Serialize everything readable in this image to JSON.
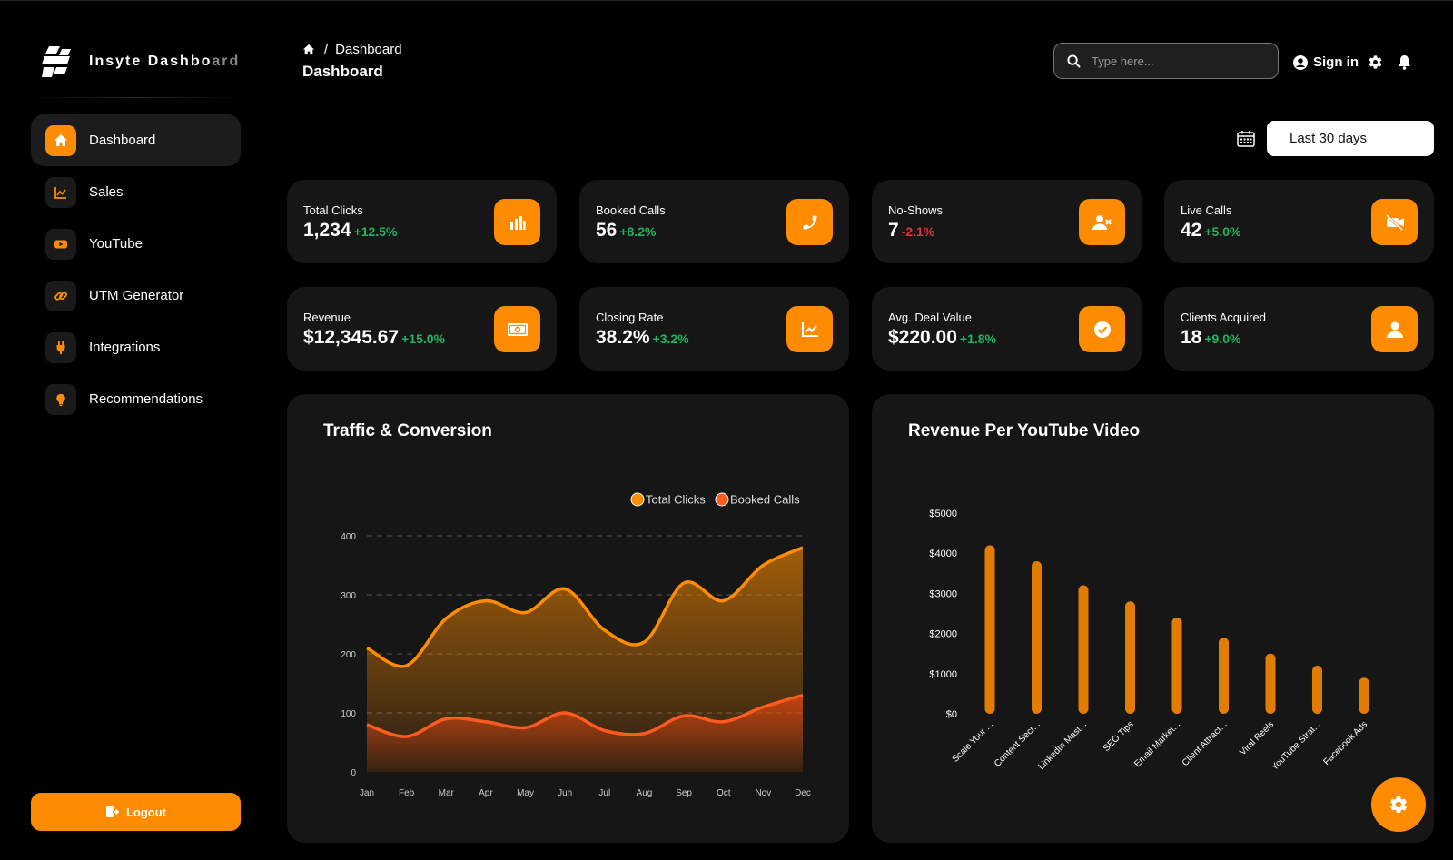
{
  "brand": {
    "name_main": "Insyte Dashbo",
    "name_fade": "ard"
  },
  "sidebar": {
    "items": [
      {
        "label": "Dashboard",
        "icon": "home-icon"
      },
      {
        "label": "Sales",
        "icon": "chart-line-icon"
      },
      {
        "label": "YouTube",
        "icon": "youtube-icon"
      },
      {
        "label": "UTM Generator",
        "icon": "link-icon"
      },
      {
        "label": "Integrations",
        "icon": "plug-icon"
      },
      {
        "label": "Recommendations",
        "icon": "lightbulb-icon"
      }
    ],
    "logout_label": "Logout"
  },
  "header": {
    "breadcrumb_sep": "/",
    "breadcrumb_current": "Dashboard",
    "title": "Dashboard",
    "search_placeholder": "Type here...",
    "signin_label": "Sign in"
  },
  "filter": {
    "range": "Last 30 days"
  },
  "stats": [
    {
      "label": "Total Clicks",
      "value": "1,234",
      "change": "+12.5%",
      "trend": "pos",
      "icon": "bar-chart-icon"
    },
    {
      "label": "Booked Calls",
      "value": "56",
      "change": "+8.2%",
      "trend": "pos",
      "icon": "phone-icon"
    },
    {
      "label": "No-Shows",
      "value": "7",
      "change": "-2.1%",
      "trend": "neg",
      "icon": "user-x-icon"
    },
    {
      "label": "Live Calls",
      "value": "42",
      "change": "+5.0%",
      "trend": "pos",
      "icon": "video-off-icon"
    },
    {
      "label": "Revenue",
      "value": "$12,345.67",
      "change": "+15.0%",
      "trend": "pos",
      "icon": "money-icon"
    },
    {
      "label": "Closing Rate",
      "value": "38.2%",
      "change": "+3.2%",
      "trend": "pos",
      "icon": "trend-icon"
    },
    {
      "label": "Avg. Deal Value",
      "value": "$220.00",
      "change": "+1.8%",
      "trend": "pos",
      "icon": "check-circle-icon"
    },
    {
      "label": "Clients Acquired",
      "value": "18",
      "change": "+9.0%",
      "trend": "pos",
      "icon": "user-icon"
    }
  ],
  "colors": {
    "accent": "#ff8c00",
    "booked": "#ff5a1f",
    "positive": "#22b35e",
    "negative": "#e8303a"
  },
  "chart_data": [
    {
      "type": "area",
      "title": "Traffic & Conversion",
      "categories": [
        "Jan",
        "Feb",
        "Mar",
        "Apr",
        "May",
        "Jun",
        "Jul",
        "Aug",
        "Sep",
        "Oct",
        "Nov",
        "Dec"
      ],
      "series": [
        {
          "name": "Total Clicks",
          "values": [
            210,
            180,
            260,
            290,
            270,
            310,
            240,
            220,
            320,
            290,
            350,
            380
          ]
        },
        {
          "name": "Booked Calls",
          "values": [
            80,
            60,
            90,
            85,
            75,
            100,
            70,
            65,
            95,
            85,
            110,
            130
          ]
        }
      ],
      "yticks": [
        0,
        100,
        200,
        300,
        400
      ],
      "ylim": [
        0,
        400
      ],
      "legend": "top-right",
      "grid": true
    },
    {
      "type": "bar",
      "title": "Revenue Per YouTube Video",
      "categories": [
        "Scale Your ...",
        "Content Secr...",
        "LinkedIn Mast...",
        "SEO Tips",
        "Email Market...",
        "Client Attract...",
        "Viral Reels",
        "YouTube Strat...",
        "Facebook Ads"
      ],
      "values": [
        4200,
        3800,
        3200,
        2800,
        2400,
        1900,
        1500,
        1200,
        900
      ],
      "yticks": [
        "$0",
        "$1000",
        "$2000",
        "$3000",
        "$4000",
        "$5000"
      ],
      "ylim": [
        0,
        5000
      ],
      "grid": false
    }
  ]
}
